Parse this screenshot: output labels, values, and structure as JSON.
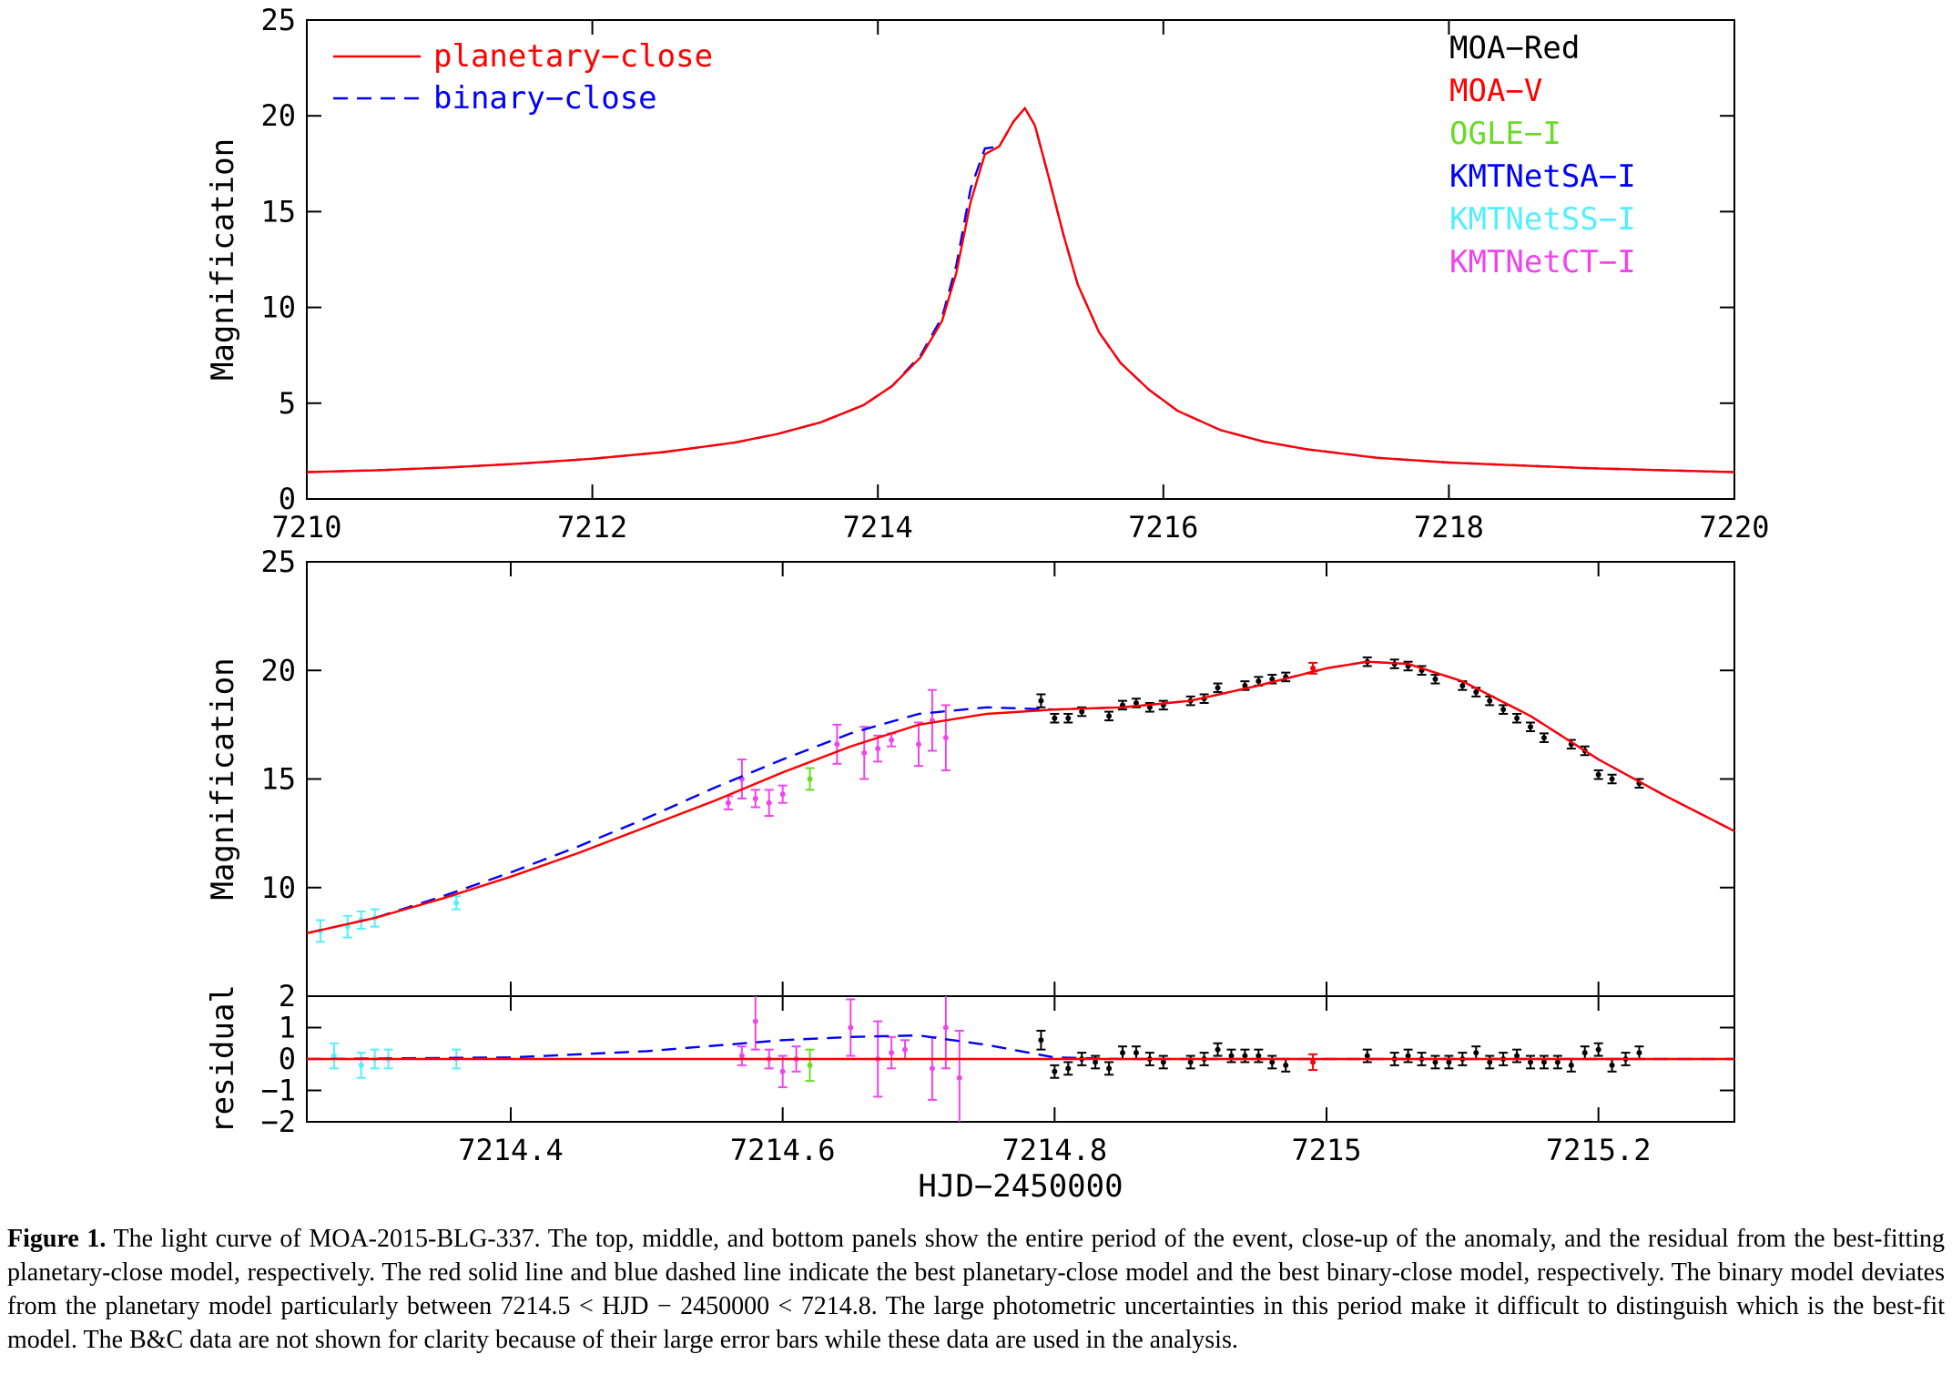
{
  "chart_data": [
    {
      "panel": "top",
      "type": "line",
      "xlim": [
        7210,
        7220
      ],
      "ylim": [
        0,
        25
      ],
      "x_ticks": [
        7210,
        7212,
        7214,
        7216,
        7218,
        7220
      ],
      "y_ticks": [
        0,
        5,
        10,
        15,
        20,
        25
      ],
      "ylabel": "Magnification",
      "legend_models": [
        {
          "name": "planetary−close",
          "color": "#ff0000",
          "style": "solid"
        },
        {
          "name": "binary−close",
          "color": "#0000ff",
          "style": "dashed"
        }
      ],
      "legend_data": [
        {
          "name": "MOA−Red",
          "color": "#000000"
        },
        {
          "name": "MOA−V",
          "color": "#ff0000"
        },
        {
          "name": "OGLE−I",
          "color": "#66dd22"
        },
        {
          "name": "KMTNetSA−I",
          "color": "#0000ff"
        },
        {
          "name": "KMTNetSS−I",
          "color": "#55eeff"
        },
        {
          "name": "KMTNetCT−I",
          "color": "#ee44ee"
        }
      ],
      "series": [
        {
          "name": "planetary−close",
          "color": "#ff0000",
          "style": "solid",
          "x": [
            7210.0,
            7210.5,
            7211.0,
            7211.5,
            7212.0,
            7212.5,
            7213.0,
            7213.3,
            7213.6,
            7213.9,
            7214.1,
            7214.3,
            7214.45,
            7214.55,
            7214.65,
            7214.75,
            7214.85,
            7214.95,
            7215.03,
            7215.1,
            7215.2,
            7215.3,
            7215.4,
            7215.55,
            7215.7,
            7215.9,
            7216.1,
            7216.4,
            7216.7,
            7217.0,
            7217.5,
            7218.0,
            7218.5,
            7219.0,
            7219.5,
            7220.0
          ],
          "y": [
            1.4,
            1.5,
            1.65,
            1.85,
            2.1,
            2.45,
            2.95,
            3.4,
            4.0,
            4.9,
            5.9,
            7.4,
            9.3,
            11.8,
            15.5,
            18.0,
            18.4,
            19.7,
            20.4,
            19.5,
            16.7,
            13.8,
            11.2,
            8.7,
            7.1,
            5.7,
            4.6,
            3.6,
            3.0,
            2.6,
            2.15,
            1.9,
            1.75,
            1.6,
            1.5,
            1.4
          ]
        },
        {
          "name": "binary−close",
          "color": "#0000ff",
          "style": "dashed",
          "x": [
            7210.0,
            7210.5,
            7211.0,
            7211.5,
            7212.0,
            7212.5,
            7213.0,
            7213.3,
            7213.6,
            7213.9,
            7214.1,
            7214.3,
            7214.45,
            7214.55,
            7214.65,
            7214.75,
            7214.85,
            7214.95,
            7215.03,
            7215.1,
            7215.2,
            7215.3,
            7215.4,
            7215.55,
            7215.7,
            7215.9,
            7216.1,
            7216.4,
            7216.7,
            7217.0,
            7217.5,
            7218.0,
            7218.5,
            7219.0,
            7219.5,
            7220.0
          ],
          "y": [
            1.4,
            1.5,
            1.65,
            1.85,
            2.1,
            2.45,
            2.95,
            3.4,
            4.0,
            4.9,
            5.9,
            7.5,
            9.5,
            12.2,
            16.2,
            18.3,
            18.4,
            19.7,
            20.4,
            19.5,
            16.7,
            13.8,
            11.2,
            8.7,
            7.1,
            5.7,
            4.6,
            3.6,
            3.0,
            2.6,
            2.15,
            1.9,
            1.75,
            1.6,
            1.5,
            1.4
          ]
        }
      ]
    },
    {
      "panel": "middle",
      "type": "line",
      "xlim": [
        7214.25,
        7215.3
      ],
      "ylim": [
        5,
        25
      ],
      "x_ticks": [
        7214.4,
        7214.6,
        7214.8,
        7215,
        7215.2
      ],
      "y_ticks": [
        10,
        15,
        20,
        25
      ],
      "ylabel": "Magnification",
      "series": [
        {
          "name": "planetary−close",
          "color": "#ff0000",
          "style": "solid",
          "x": [
            7214.25,
            7214.3,
            7214.35,
            7214.4,
            7214.45,
            7214.5,
            7214.55,
            7214.6,
            7214.65,
            7214.7,
            7214.75,
            7214.8,
            7214.85,
            7214.9,
            7214.95,
            7215.0,
            7215.03,
            7215.06,
            7215.1,
            7215.15,
            7215.2,
            7215.25,
            7215.3
          ],
          "y": [
            7.9,
            8.6,
            9.5,
            10.5,
            11.6,
            12.8,
            14.0,
            15.3,
            16.5,
            17.5,
            18.0,
            18.2,
            18.3,
            18.6,
            19.3,
            20.1,
            20.4,
            20.3,
            19.5,
            17.9,
            15.9,
            14.2,
            12.6
          ]
        },
        {
          "name": "binary−close",
          "color": "#0000ff",
          "style": "dashed",
          "x": [
            7214.25,
            7214.3,
            7214.35,
            7214.4,
            7214.45,
            7214.5,
            7214.55,
            7214.6,
            7214.65,
            7214.7,
            7214.75,
            7214.8,
            7214.85,
            7214.9,
            7214.95,
            7215.0,
            7215.03,
            7215.06,
            7215.1,
            7215.15,
            7215.2,
            7215.25,
            7215.3
          ],
          "y": [
            7.9,
            8.6,
            9.6,
            10.7,
            11.9,
            13.2,
            14.6,
            15.9,
            17.1,
            18.0,
            18.3,
            18.2,
            18.3,
            18.6,
            19.3,
            20.1,
            20.4,
            20.3,
            19.5,
            17.9,
            15.9,
            14.2,
            12.6
          ]
        }
      ],
      "points": [
        {
          "dataset": "KMTNetSS−I",
          "color": "#55eeff",
          "x": [
            7214.26,
            7214.28,
            7214.29,
            7214.3,
            7214.36
          ],
          "y": [
            8.0,
            8.2,
            8.5,
            8.6,
            9.3
          ],
          "err": [
            0.5,
            0.5,
            0.4,
            0.4,
            0.3
          ]
        },
        {
          "dataset": "KMTNetCT−I",
          "color": "#ee44ee",
          "x": [
            7214.56,
            7214.57,
            7214.58,
            7214.59,
            7214.6,
            7214.64,
            7214.66,
            7214.67,
            7214.68,
            7214.7,
            7214.71,
            7214.72
          ],
          "y": [
            13.9,
            15.0,
            14.1,
            13.9,
            14.3,
            16.6,
            16.2,
            16.4,
            16.8,
            16.6,
            17.7,
            16.9
          ],
          "err": [
            0.3,
            0.9,
            0.4,
            0.6,
            0.4,
            0.9,
            1.2,
            0.6,
            0.3,
            1.0,
            1.4,
            1.5
          ]
        },
        {
          "dataset": "OGLE−I",
          "color": "#66dd22",
          "x": [
            7214.62
          ],
          "y": [
            15.0
          ],
          "err": [
            0.5
          ]
        },
        {
          "dataset": "MOA−V",
          "color": "#ff0000",
          "x": [
            7214.99
          ],
          "y": [
            20.1
          ],
          "err": [
            0.25
          ]
        },
        {
          "dataset": "MOA−Red",
          "color": "#000000",
          "x": [
            7214.79,
            7214.8,
            7214.81,
            7214.82,
            7214.84,
            7214.85,
            7214.86,
            7214.87,
            7214.88,
            7214.9,
            7214.91,
            7214.92,
            7214.94,
            7214.95,
            7214.96,
            7214.97,
            7215.03,
            7215.05,
            7215.06,
            7215.07,
            7215.08,
            7215.1,
            7215.11,
            7215.12,
            7215.13,
            7215.14,
            7215.15,
            7215.16,
            7215.18,
            7215.19,
            7215.2,
            7215.21,
            7215.23
          ],
          "y": [
            18.6,
            17.8,
            17.8,
            18.1,
            17.9,
            18.4,
            18.5,
            18.3,
            18.4,
            18.6,
            18.7,
            19.2,
            19.3,
            19.5,
            19.6,
            19.7,
            20.4,
            20.3,
            20.2,
            20.0,
            19.6,
            19.3,
            19.0,
            18.6,
            18.2,
            17.8,
            17.4,
            16.9,
            16.6,
            16.3,
            15.2,
            15.0,
            14.8
          ],
          "err": [
            0.3,
            0.2,
            0.2,
            0.2,
            0.2,
            0.2,
            0.2,
            0.2,
            0.2,
            0.2,
            0.2,
            0.2,
            0.2,
            0.2,
            0.2,
            0.2,
            0.2,
            0.2,
            0.2,
            0.2,
            0.2,
            0.2,
            0.2,
            0.2,
            0.2,
            0.2,
            0.2,
            0.2,
            0.2,
            0.2,
            0.2,
            0.2,
            0.2
          ]
        }
      ]
    },
    {
      "panel": "bottom",
      "type": "scatter",
      "xlim": [
        7214.25,
        7215.3
      ],
      "ylim": [
        -2,
        2
      ],
      "x_ticks": [
        7214.4,
        7214.6,
        7214.8,
        7215,
        7215.2
      ],
      "y_ticks": [
        -2,
        -1,
        0,
        1,
        2
      ],
      "ylabel": "residual",
      "xlabel": "HJD−2450000",
      "series": [
        {
          "name": "planetary−close",
          "color": "#ff0000",
          "style": "solid",
          "x": [
            7214.25,
            7215.3
          ],
          "y": [
            0,
            0
          ]
        },
        {
          "name": "binary−close",
          "color": "#0000ff",
          "style": "dashed",
          "x": [
            7214.25,
            7214.4,
            7214.5,
            7214.6,
            7214.65,
            7214.7,
            7214.75,
            7214.8,
            7214.85,
            7215.3
          ],
          "y": [
            0,
            0.05,
            0.25,
            0.6,
            0.7,
            0.75,
            0.45,
            0.05,
            0,
            0
          ]
        }
      ],
      "points": [
        {
          "dataset": "KMTNetSS−I",
          "color": "#55eeff",
          "x": [
            7214.27,
            7214.29,
            7214.3,
            7214.31,
            7214.36
          ],
          "y": [
            0.1,
            -0.2,
            0.0,
            0.0,
            0.0
          ],
          "err": [
            0.4,
            0.4,
            0.3,
            0.3,
            0.3
          ]
        },
        {
          "dataset": "KMTNetCT−I",
          "color": "#ee44ee",
          "x": [
            7214.57,
            7214.58,
            7214.59,
            7214.6,
            7214.61,
            7214.65,
            7214.67,
            7214.68,
            7214.69,
            7214.71,
            7214.72,
            7214.73
          ],
          "y": [
            0.1,
            1.2,
            0.0,
            -0.4,
            0.0,
            1.0,
            0.0,
            0.2,
            0.3,
            -0.3,
            1.0,
            -0.6
          ],
          "err": [
            0.3,
            0.9,
            0.3,
            0.5,
            0.4,
            0.9,
            1.2,
            0.5,
            0.3,
            1.0,
            1.3,
            1.5
          ]
        },
        {
          "dataset": "OGLE−I",
          "color": "#66dd22",
          "x": [
            7214.62
          ],
          "y": [
            -0.2
          ],
          "err": [
            0.5
          ]
        },
        {
          "dataset": "MOA−V",
          "color": "#ff0000",
          "x": [
            7214.99
          ],
          "y": [
            -0.1
          ],
          "err": [
            0.25
          ]
        },
        {
          "dataset": "MOA−Red",
          "color": "#000000",
          "x": [
            7214.79,
            7214.8,
            7214.81,
            7214.82,
            7214.83,
            7214.84,
            7214.85,
            7214.86,
            7214.87,
            7214.88,
            7214.9,
            7214.91,
            7214.92,
            7214.93,
            7214.94,
            7214.95,
            7214.96,
            7214.97,
            7215.03,
            7215.05,
            7215.06,
            7215.07,
            7215.08,
            7215.09,
            7215.1,
            7215.11,
            7215.12,
            7215.13,
            7215.14,
            7215.15,
            7215.16,
            7215.17,
            7215.18,
            7215.19,
            7215.2,
            7215.21,
            7215.22,
            7215.23
          ],
          "y": [
            0.6,
            -0.4,
            -0.3,
            0.0,
            -0.1,
            -0.3,
            0.2,
            0.2,
            0.0,
            -0.1,
            -0.1,
            0.0,
            0.3,
            0.1,
            0.1,
            0.1,
            -0.1,
            -0.2,
            0.1,
            0.0,
            0.1,
            0.0,
            -0.1,
            -0.1,
            0.0,
            0.2,
            -0.1,
            0.0,
            0.1,
            -0.1,
            -0.1,
            -0.1,
            -0.2,
            0.2,
            0.3,
            -0.2,
            0.0,
            0.2
          ],
          "err": [
            0.3,
            0.2,
            0.2,
            0.2,
            0.2,
            0.2,
            0.2,
            0.2,
            0.2,
            0.2,
            0.2,
            0.2,
            0.2,
            0.2,
            0.2,
            0.2,
            0.2,
            0.2,
            0.2,
            0.2,
            0.2,
            0.2,
            0.2,
            0.2,
            0.2,
            0.2,
            0.2,
            0.2,
            0.2,
            0.2,
            0.2,
            0.2,
            0.2,
            0.2,
            0.2,
            0.2,
            0.2,
            0.2
          ]
        }
      ]
    }
  ],
  "caption": {
    "label": "Figure 1.",
    "text": " The light curve of MOA-2015-BLG-337. The top, middle, and bottom panels show the entire period of the event, close-up of the anomaly, and the residual from the best-fitting planetary-close model, respectively. The red solid line and blue dashed line indicate the best planetary-close model and the best binary-close model, respectively. The binary model deviates from the planetary model particularly between 7214.5 < HJD − 2450000 < 7214.8. The large photometric uncertainties in this period make it difficult to distinguish which is the best-fit model. The B&C data are not shown for clarity because of their large error bars while these data are used in the analysis."
  }
}
